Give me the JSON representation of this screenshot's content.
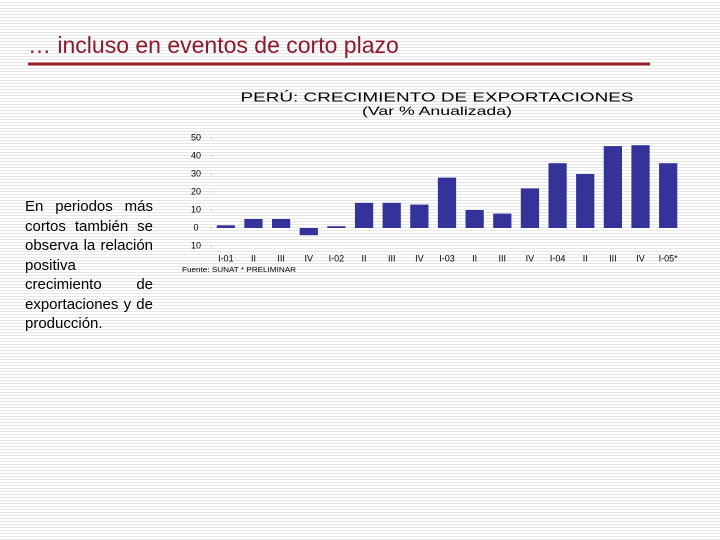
{
  "slide_title": "… incluso en eventos de corto plazo",
  "text": "En periodos más cortos también se observa la relación positiva crecimiento de exportaciones y de producción.",
  "chart_data": {
    "type": "bar",
    "title": "PERÚ: CRECIMIENTO DE EXPORTACIONES",
    "subtitle": "(Var % Anualizada)",
    "source": "Fuente: SUNAT * PRELIMINAR",
    "categories": [
      "I-01",
      "II",
      "III",
      "IV",
      "I-02",
      "II",
      "III",
      "IV",
      "I-03",
      "II",
      "III",
      "IV",
      "I-04",
      "II",
      "III",
      "IV",
      "I-05*"
    ],
    "values": [
      1.5,
      5,
      5,
      -4,
      1,
      14,
      14,
      13,
      28,
      10,
      8,
      22,
      36,
      30,
      45.5,
      46,
      36
    ],
    "color": "#333399",
    "ylim": [
      -10,
      50
    ],
    "yticks": [
      50,
      40,
      30,
      20,
      10,
      0,
      {
        "value": -10,
        "label": "10"
      }
    ]
  }
}
